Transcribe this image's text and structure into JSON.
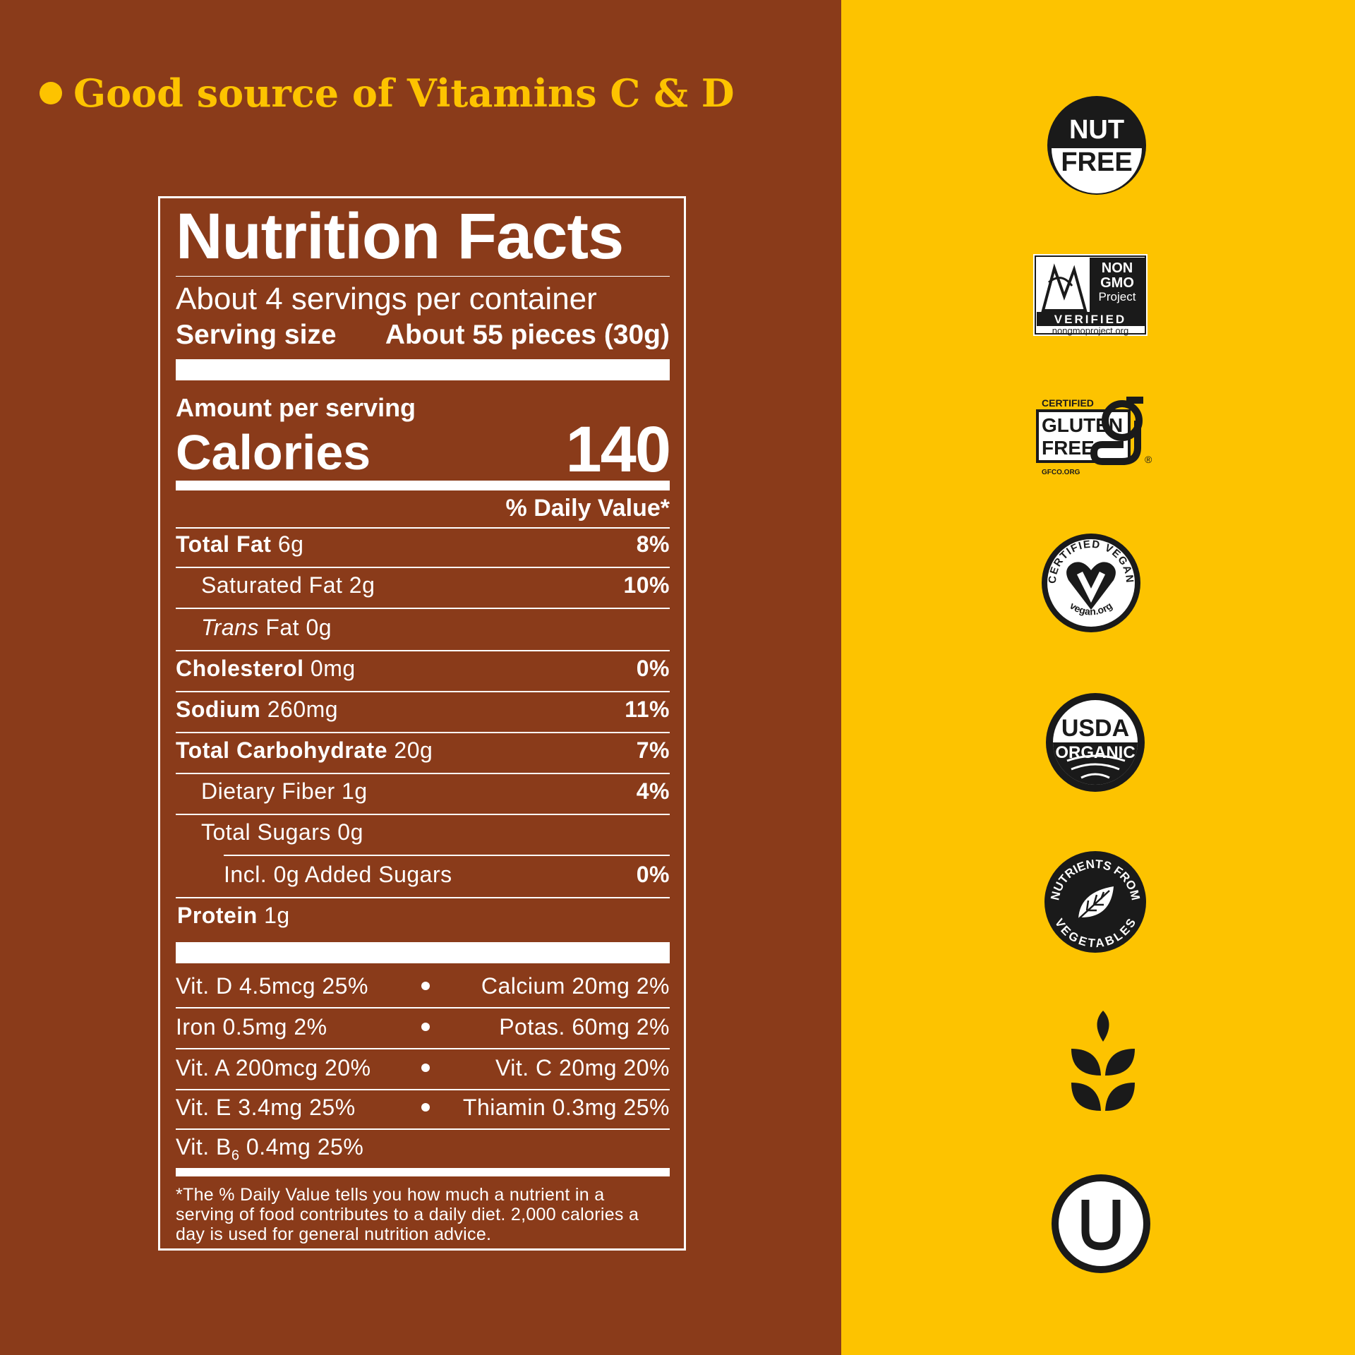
{
  "tagline": "Good source of Vitamins C & D",
  "nutrition": {
    "title": "Nutrition Facts",
    "servings": "About 4 servings per container",
    "serving_size_label": "Serving size",
    "serving_size_value": "About 55 pieces (30g)",
    "amount_label": "Amount per serving",
    "calories_label": "Calories",
    "calories_value": "140",
    "dv_header": "% Daily Value*",
    "rows": [
      {
        "bold": "Total Fat",
        "ital": "",
        "rest": " 6g",
        "dv": "8%"
      },
      {
        "bold": "",
        "ital": "",
        "rest": "Saturated Fat 2g",
        "dv": "10%"
      },
      {
        "bold": "",
        "ital": "Trans",
        "rest": " Fat  0g",
        "dv": ""
      },
      {
        "bold": "Cholesterol",
        "ital": "",
        "rest": " 0mg",
        "dv": "0%"
      },
      {
        "bold": "Sodium",
        "ital": "",
        "rest": " 260mg",
        "dv": "11%"
      },
      {
        "bold": "Total Carbohydrate",
        "ital": "",
        "rest": " 20g",
        "dv": "7%"
      },
      {
        "bold": "",
        "ital": "",
        "rest": "Dietary Fiber 1g",
        "dv": "4%"
      },
      {
        "bold": "",
        "ital": "",
        "rest": "Total Sugars 0g",
        "dv": ""
      },
      {
        "bold": "",
        "ital": "",
        "rest": "Incl. 0g Added Sugars",
        "dv": "0%"
      },
      {
        "bold": "Protein",
        "ital": "",
        "rest": " 1g",
        "dv": ""
      }
    ],
    "vitamins": [
      {
        "left": "Vit. D 4.5mcg 25%",
        "right": "Calcium 20mg 2%"
      },
      {
        "left": "Iron 0.5mg 2%",
        "right": "Potas. 60mg 2%"
      },
      {
        "left": "Vit. A 200mcg 20%",
        "right": "Vit. C 20mg 20%"
      },
      {
        "left": "Vit. E 3.4mg 25%",
        "right": "Thiamin 0.3mg 25%"
      }
    ],
    "vit_b6_prefix": "Vit. B",
    "vit_b6_sub": "6",
    "vit_b6_rest": " 0.4mg 25%",
    "footnote": "*The % Daily Value tells you how much a nutrient in a serving of food contributes to a daily diet. 2,000 calories a day is used for general nutrition advice."
  },
  "badges": {
    "nut_free": [
      "NUT",
      "FREE"
    ],
    "non_gmo": {
      "line1": "NON",
      "line2": "GMO",
      "line3": "Project",
      "verified": "VERIFIED",
      "url": "nongmoproject.org"
    },
    "gluten_free": {
      "certified": "CERTIFIED",
      "line1": "GLUTEN",
      "line2": "FREE",
      "url": "GFCO.ORG"
    },
    "vegan": {
      "top": "CERTIFIED VEGAN",
      "bottom": "vegan.org"
    },
    "usda": {
      "line1": "USDA",
      "line2": "ORGANIC"
    },
    "veg": {
      "top": "NUTRIENTS FROM",
      "bottom": "VEGETABLES"
    }
  },
  "colors": {
    "brown": "#8a3b1a",
    "yellow": "#fdc300",
    "black": "#1a1a1a",
    "white": "#ffffff"
  }
}
